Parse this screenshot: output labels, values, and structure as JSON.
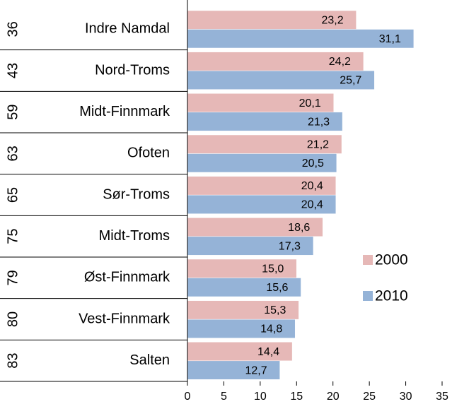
{
  "chart_data": {
    "type": "hbar",
    "categories": [
      "Indre Namdal",
      "Nord-Troms",
      "Midt-Finnmark",
      "Ofoten",
      "Sør-Troms",
      "Midt-Troms",
      "Øst-Finnmark",
      "Vest-Finnmark",
      "Salten"
    ],
    "category_ranks": [
      36,
      43,
      59,
      63,
      65,
      75,
      79,
      80,
      83
    ],
    "series": [
      {
        "name": "2000",
        "color": "#e6b8b7",
        "values": [
          23.2,
          24.2,
          20.1,
          21.2,
          20.4,
          18.6,
          15.0,
          15.3,
          14.4
        ],
        "value_labels": [
          "23,2",
          "24,2",
          "20,1",
          "21,2",
          "20,4",
          "18,6",
          "15,0",
          "15,3",
          "14,4"
        ]
      },
      {
        "name": "2010",
        "color": "#95b3d7",
        "values": [
          31.1,
          25.7,
          21.3,
          20.5,
          20.4,
          17.3,
          15.6,
          14.8,
          12.7
        ],
        "value_labels": [
          "31,1",
          "25,7",
          "21,3",
          "20,5",
          "20,4",
          "17,3",
          "15,6",
          "14,8",
          "12,7"
        ]
      }
    ],
    "xlim": [
      0,
      35
    ],
    "xticks": [
      0,
      5,
      10,
      15,
      20,
      25,
      30,
      35
    ],
    "legend": "right"
  }
}
